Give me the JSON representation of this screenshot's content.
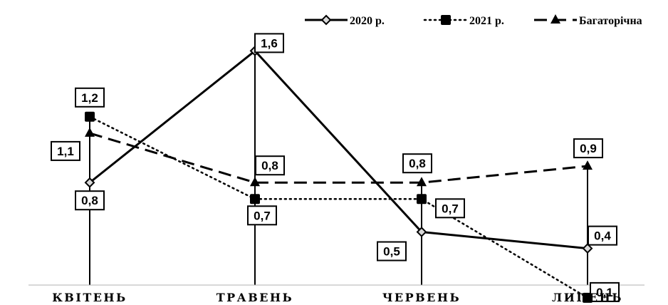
{
  "chart_data": {
    "type": "line",
    "categories": [
      "КВІТЕНЬ",
      "ТРАВЕНЬ",
      "ЧЕРВЕНЬ",
      "ЛИПЕНЬ"
    ],
    "series": [
      {
        "name": "2020 р.",
        "values": [
          0.8,
          1.6,
          0.5,
          0.4
        ],
        "value_labels": [
          "0,8",
          "1,6",
          "0,5",
          "0,4"
        ],
        "line_style": "solid",
        "marker": "diamond"
      },
      {
        "name": "2021 р.",
        "values": [
          1.2,
          0.7,
          0.7,
          0.1
        ],
        "value_labels": [
          "1,2",
          "0,7",
          "0,7",
          "0,1"
        ],
        "line_style": "dotted",
        "marker": "square"
      },
      {
        "name": "Багаторічна",
        "values": [
          1.1,
          0.8,
          0.8,
          0.9
        ],
        "value_labels": [
          "1,1",
          "0,8",
          "0,8",
          "0,9"
        ],
        "line_style": "dashed",
        "marker": "triangle"
      }
    ],
    "ylim": [
      0,
      1.6
    ],
    "legend_position": "top-right",
    "drop_lines": true,
    "grid": false,
    "color": "#000000"
  }
}
